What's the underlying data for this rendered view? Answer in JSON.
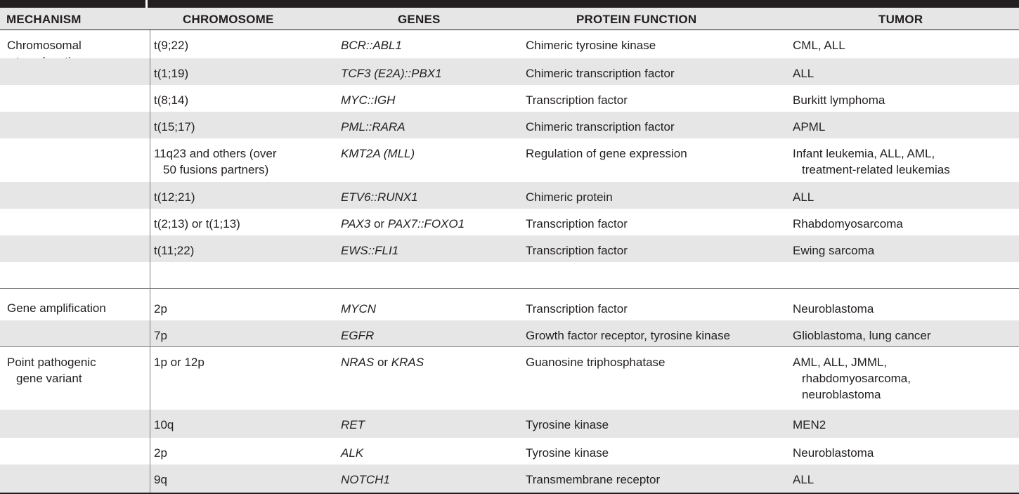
{
  "columns": [
    "MECHANISM",
    "CHROMOSOME",
    "GENES",
    "PROTEIN FUNCTION",
    "TUMOR"
  ],
  "groups": [
    {
      "mechanism_line1": "Chromosomal",
      "mechanism_line2": "translocation"
    },
    {
      "mechanism_line1": "Gene amplification",
      "mechanism_line2": ""
    },
    {
      "mechanism_line1": "Point pathogenic",
      "mechanism_line2": "gene variant"
    }
  ],
  "rows": [
    {
      "chromosome": "t(9;22)",
      "genes": "BCR::ABL1",
      "protein": "Chimeric tyrosine kinase",
      "tumor": "CML, ALL"
    },
    {
      "chromosome": "t(1;19)",
      "genes": "TCF3 (E2A)::PBX1",
      "protein": "Chimeric transcription factor",
      "tumor": "ALL"
    },
    {
      "chromosome": "t(8;14)",
      "genes": "MYC::IGH",
      "protein": "Transcription factor",
      "tumor": "Burkitt lymphoma"
    },
    {
      "chromosome": "t(15;17)",
      "genes": "PML::RARA",
      "protein": "Chimeric transcription factor",
      "tumor": "APML"
    },
    {
      "chromosome_line1": "11q23 and others (over",
      "chromosome_line2": "50 fusions partners)",
      "genes": "KMT2A (MLL)",
      "protein": "Regulation of gene expression",
      "tumor_line1": "Infant leukemia, ALL, AML,",
      "tumor_line2": "treatment-related leukemias"
    },
    {
      "chromosome": "t(12;21)",
      "genes": "ETV6::RUNX1",
      "protein": "Chimeric protein",
      "tumor": "ALL"
    },
    {
      "chromosome": "t(2;13) or t(1;13)",
      "genes_part1": "PAX3",
      "genes_connector": " or ",
      "genes_part2": "PAX7::FOXO1",
      "protein": "Transcription factor",
      "tumor": "Rhabdomyosarcoma"
    },
    {
      "chromosome": "t(11;22)",
      "genes": "EWS::FLI1",
      "protein": "Transcription factor",
      "tumor": "Ewing sarcoma"
    },
    {
      "chromosome": "2p",
      "genes": "MYCN",
      "protein": "Transcription factor",
      "tumor": "Neuroblastoma"
    },
    {
      "chromosome": "7p",
      "genes": "EGFR",
      "protein": "Growth factor receptor, tyrosine kinase",
      "tumor": "Glioblastoma, lung cancer"
    },
    {
      "chromosome": "1p or 12p",
      "genes_part1": "NRAS",
      "genes_connector": " or ",
      "genes_part2": "KRAS",
      "protein": "Guanosine triphosphatase",
      "tumor_line1": "AML, ALL, JMML,",
      "tumor_line2": "rhabdomyosarcoma,",
      "tumor_line3": "neuroblastoma"
    },
    {
      "chromosome": "10q",
      "genes": "RET",
      "protein": "Tyrosine kinase",
      "tumor": "MEN2"
    },
    {
      "chromosome": "2p",
      "genes": "ALK",
      "protein": "Tyrosine kinase",
      "tumor": "Neuroblastoma"
    },
    {
      "chromosome": "9q",
      "genes": "NOTCH1",
      "protein": "Transmembrane receptor",
      "tumor": "ALL"
    }
  ],
  "colors": {
    "header_bg": "#e6e6e7",
    "row_shade": "#e6e6e7",
    "top_bar": "#231f20",
    "text": "#231f20"
  }
}
